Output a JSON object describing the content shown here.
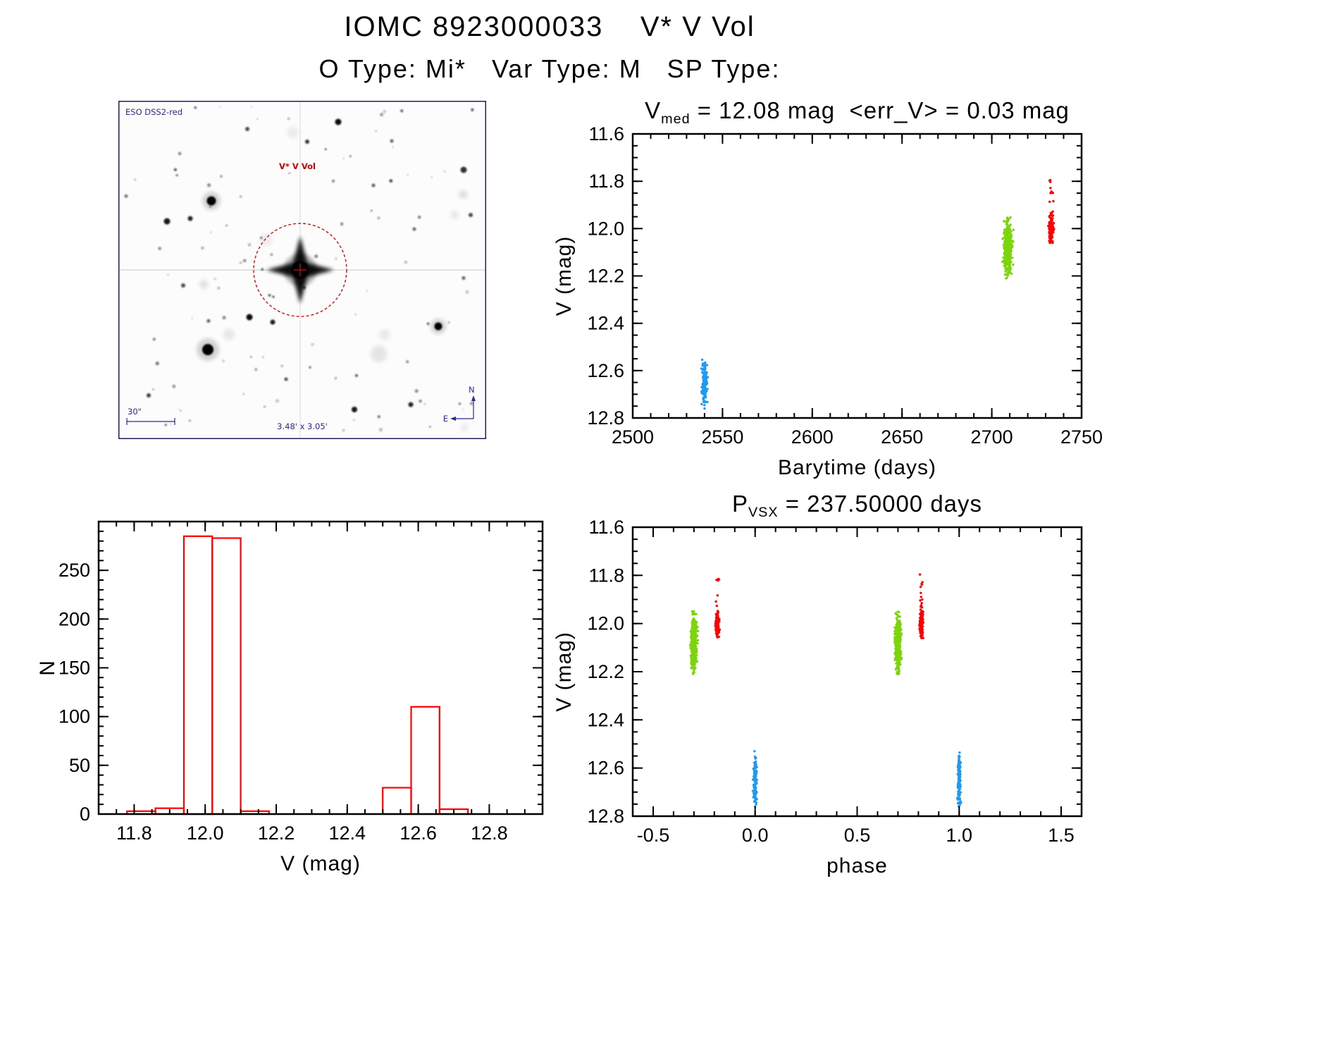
{
  "header": {
    "title": "IOMC 8923000033    V* V Vol",
    "subtitle": "O Type: Mi*   Var Type: M   SP Type:"
  },
  "measurements": {
    "v_med_mag": "12.08",
    "err_v_mag": "0.03",
    "p_vsx_days": "237.50000"
  },
  "sky_image": {
    "survey_label": "ESO DSS2-red",
    "target_label": "V* V Vol",
    "scale_label": "30\"",
    "fov_label": "3.48' x 3.05'",
    "compass_north": "N",
    "compass_east": "E",
    "annotation_color": "#2a2a8f",
    "target_color": "#cc1111"
  },
  "palette": {
    "point_blue": "#1E9BF0",
    "point_green": "#7CD40A",
    "point_red": "#FF0000",
    "histogram_color": "#FF0000",
    "axis_color": "#000000"
  },
  "chart_data": [
    {
      "id": "lightcurve",
      "type": "scatter",
      "title_parts": {
        "pre": "V",
        "sub": "med",
        "post": " = 12.08 mag  <err_V> = 0.03 mag"
      },
      "xlabel": "Barytime (days)",
      "ylabel": "V (mag)",
      "xlim": [
        2500,
        2750
      ],
      "ylim": [
        12.8,
        11.6
      ],
      "xticks": [
        2500,
        2550,
        2600,
        2650,
        2700,
        2750
      ],
      "xtick_labels": [
        "2500",
        "2550",
        "2600",
        "2650",
        "2700",
        "2750"
      ],
      "yticks": [
        11.6,
        11.8,
        12.0,
        12.2,
        12.4,
        12.6,
        12.8
      ],
      "ytick_labels": [
        "11.6",
        "11.8",
        "12.0",
        "12.2",
        "12.4",
        "12.6",
        "12.8"
      ],
      "x_minor_step": 10,
      "y_minor_step": 0.05,
      "grid": false,
      "series": [
        {
          "name": "epoch1-blue",
          "color": "#1E9BF0",
          "x_center": 2540,
          "x_spread": 1.3,
          "y_dense": [
            12.58,
            12.74
          ],
          "y_full": [
            12.53,
            12.76
          ],
          "count": 140
        },
        {
          "name": "epoch2-green",
          "color": "#7CD40A",
          "x_center": 2709,
          "x_spread": 2.0,
          "y_dense": [
            12.0,
            12.17
          ],
          "y_full": [
            11.95,
            12.21
          ],
          "count": 430
        },
        {
          "name": "epoch3-red",
          "color": "#FF0000",
          "x_center": 2733,
          "x_spread": 1.2,
          "y_dense": [
            11.96,
            12.05
          ],
          "y_full": [
            11.78,
            12.06
          ],
          "count": 150
        }
      ]
    },
    {
      "id": "histogram",
      "type": "histogram",
      "color": "#FF0000",
      "xlabel": "V (mag)",
      "ylabel": "N",
      "xlim": [
        11.7,
        12.95
      ],
      "ylim": [
        0,
        300
      ],
      "xticks": [
        11.8,
        12.0,
        12.2,
        12.4,
        12.6,
        12.8
      ],
      "xtick_labels": [
        "11.8",
        "12.0",
        "12.2",
        "12.4",
        "12.6",
        "12.8"
      ],
      "yticks": [
        0,
        50,
        100,
        150,
        200,
        250
      ],
      "ytick_labels": [
        "0",
        "50",
        "100",
        "150",
        "200",
        "250"
      ],
      "x_minor_step": 0.05,
      "y_minor_step": 10,
      "grid": false,
      "bins": [
        {
          "x0": 11.78,
          "x1": 11.86,
          "n": 3
        },
        {
          "x0": 11.86,
          "x1": 11.94,
          "n": 6
        },
        {
          "x0": 11.94,
          "x1": 12.02,
          "n": 285
        },
        {
          "x0": 12.02,
          "x1": 12.1,
          "n": 283
        },
        {
          "x0": 12.1,
          "x1": 12.18,
          "n": 3
        },
        {
          "x0": 12.5,
          "x1": 12.58,
          "n": 27
        },
        {
          "x0": 12.58,
          "x1": 12.66,
          "n": 110
        },
        {
          "x0": 12.66,
          "x1": 12.74,
          "n": 5
        }
      ]
    },
    {
      "id": "phase",
      "type": "scatter",
      "title_parts": {
        "pre": "P",
        "sub": "VSX",
        "post": " = 237.50000 days"
      },
      "xlabel": "phase",
      "ylabel": "V (mag)",
      "xlim": [
        -0.6,
        1.6
      ],
      "ylim": [
        12.8,
        11.6
      ],
      "xticks": [
        -0.5,
        0.0,
        0.5,
        1.0,
        1.5
      ],
      "xtick_labels": [
        "-0.5",
        "0.0",
        "0.5",
        "1.0",
        "1.5"
      ],
      "yticks": [
        11.6,
        11.8,
        12.0,
        12.2,
        12.4,
        12.6,
        12.8
      ],
      "ytick_labels": [
        "11.6",
        "11.8",
        "12.0",
        "12.2",
        "12.4",
        "12.6",
        "12.8"
      ],
      "x_minor_step": 0.1,
      "y_minor_step": 0.05,
      "grid": false,
      "series": [
        {
          "name": "green-a",
          "color": "#7CD40A",
          "x_center": -0.3,
          "x_spread": 0.012,
          "y_dense": [
            12.0,
            12.17
          ],
          "y_full": [
            11.95,
            12.21
          ],
          "count": 430
        },
        {
          "name": "green-b",
          "color": "#7CD40A",
          "x_center": 0.7,
          "x_spread": 0.012,
          "y_dense": [
            12.0,
            12.17
          ],
          "y_full": [
            11.95,
            12.21
          ],
          "count": 430
        },
        {
          "name": "red-a",
          "color": "#FF0000",
          "x_center": -0.185,
          "x_spread": 0.007,
          "y_dense": [
            11.96,
            12.05
          ],
          "y_full": [
            11.78,
            12.06
          ],
          "count": 150
        },
        {
          "name": "red-b",
          "color": "#FF0000",
          "x_center": 0.815,
          "x_spread": 0.007,
          "y_dense": [
            11.96,
            12.05
          ],
          "y_full": [
            11.78,
            12.06
          ],
          "count": 150
        },
        {
          "name": "blue-a",
          "color": "#1E9BF0",
          "x_center": 0.0,
          "x_spread": 0.006,
          "y_dense": [
            12.58,
            12.74
          ],
          "y_full": [
            12.53,
            12.76
          ],
          "count": 140
        },
        {
          "name": "blue-b",
          "color": "#1E9BF0",
          "x_center": 1.0,
          "x_spread": 0.006,
          "y_dense": [
            12.58,
            12.74
          ],
          "y_full": [
            12.53,
            12.76
          ],
          "count": 140
        }
      ]
    }
  ]
}
